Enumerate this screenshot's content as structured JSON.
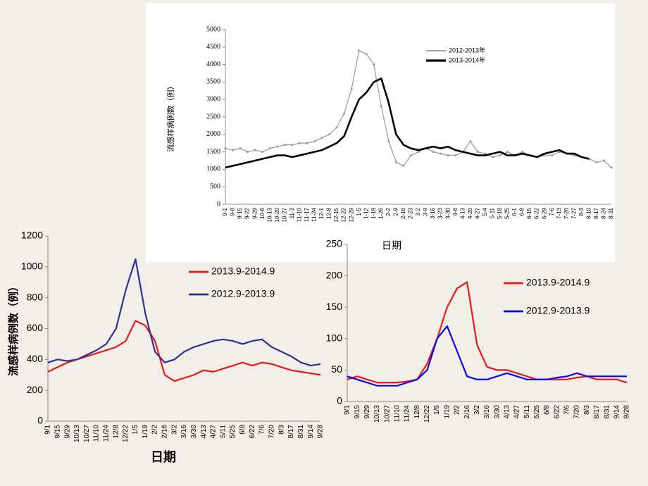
{
  "chart_data": [
    {
      "type": "line",
      "ylabel": "流感样病例数（例）",
      "xlabel": "日期",
      "ylim": [
        0,
        5000
      ],
      "yticks": [
        0,
        500,
        1000,
        1500,
        2000,
        2500,
        3000,
        3500,
        4000,
        4500,
        5000
      ],
      "categories": [
        "9-1",
        "9-8",
        "9-15",
        "9-22",
        "9-29",
        "10-6",
        "10-13",
        "10-20",
        "10-27",
        "11-3",
        "11-10",
        "11-17",
        "11-24",
        "12-1",
        "12-8",
        "12-15",
        "12-22",
        "12-29",
        "1-5",
        "1-12",
        "1-19",
        "1-26",
        "2-2",
        "2-9",
        "2-16",
        "2-23",
        "3-2",
        "3-9",
        "3-16",
        "3-23",
        "3-30",
        "4-6",
        "4-13",
        "4-20",
        "4-27",
        "5-4",
        "5-11",
        "5-18",
        "5-25",
        "6-1",
        "6-8",
        "6-15",
        "6-22",
        "6-29",
        "7-6",
        "7-13",
        "7-20",
        "7-27",
        "8-3",
        "8-10",
        "8-17",
        "8-24",
        "8-31"
      ],
      "series": [
        {
          "name": "2012-2013年",
          "color": "#a0a0a0",
          "values": [
            1600,
            1550,
            1600,
            1500,
            1550,
            1500,
            1600,
            1650,
            1700,
            1700,
            1750,
            1750,
            1800,
            1900,
            2000,
            2200,
            2600,
            3300,
            4400,
            4300,
            4000,
            2800,
            1800,
            1200,
            1100,
            1400,
            1500,
            1600,
            1500,
            1450,
            1400,
            1400,
            1500,
            1800,
            1500,
            1450,
            1350,
            1400,
            1500,
            1400,
            1500,
            1400,
            1350,
            1400,
            1400,
            1500,
            1450,
            1400,
            1350,
            1300,
            1200,
            1250,
            1050
          ]
        },
        {
          "name": "2013-2014年",
          "color": "#000000",
          "values": [
            1050,
            1100,
            1150,
            1200,
            1250,
            1300,
            1350,
            1400,
            1400,
            1350,
            1400,
            1450,
            1500,
            1550,
            1650,
            1750,
            1950,
            2500,
            3000,
            3200,
            3500,
            3600,
            2900,
            2000,
            1700,
            1600,
            1550,
            1600,
            1650,
            1600,
            1650,
            1550,
            1500,
            1450,
            1400,
            1400,
            1450,
            1500,
            1400,
            1400,
            1450,
            1400,
            1350,
            1450,
            1500,
            1550,
            1450,
            1450,
            1350,
            1300,
            null,
            null,
            null
          ]
        }
      ]
    },
    {
      "type": "line",
      "ylabel": "流感样病例数（例）",
      "xlabel": "日期",
      "ylim": [
        0,
        1200
      ],
      "yticks": [
        0,
        200,
        400,
        600,
        800,
        1000,
        1200
      ],
      "categories": [
        "9/1",
        "9/15",
        "9/29",
        "10/13",
        "10/27",
        "11/10",
        "11/24",
        "12/8",
        "12/22",
        "1/5",
        "1/19",
        "2/2",
        "2/16",
        "3/2",
        "3/16",
        "3/30",
        "4/13",
        "4/27",
        "5/11",
        "5/25",
        "6/8",
        "6/22",
        "7/6",
        "7/20",
        "8/3",
        "8/17",
        "8/31",
        "9/14",
        "9/28"
      ],
      "series": [
        {
          "name": "2013.9-2014.9",
          "color": "#e8191c",
          "values": [
            320,
            350,
            380,
            400,
            420,
            440,
            460,
            480,
            520,
            650,
            620,
            520,
            300,
            260,
            280,
            300,
            330,
            320,
            340,
            360,
            380,
            360,
            380,
            370,
            350,
            330,
            320,
            310,
            300
          ]
        },
        {
          "name": "2012.9-2013.9",
          "color": "#2e3192",
          "values": [
            380,
            400,
            390,
            400,
            430,
            460,
            500,
            600,
            850,
            1050,
            700,
            450,
            380,
            400,
            450,
            480,
            500,
            520,
            530,
            520,
            500,
            520,
            530,
            480,
            450,
            420,
            380,
            360,
            370
          ]
        }
      ]
    },
    {
      "type": "line",
      "ylim": [
        0,
        250
      ],
      "yticks": [
        0,
        50,
        100,
        150,
        200,
        250
      ],
      "categories": [
        "9/1",
        "9/15",
        "9/29",
        "10/13",
        "10/27",
        "11/10",
        "11/24",
        "12/8",
        "12/22",
        "1/5",
        "1/19",
        "2/2",
        "2/16",
        "3/2",
        "3/16",
        "3/30",
        "4/13",
        "4/27",
        "5/11",
        "5/25",
        "6/8",
        "6/22",
        "7/6",
        "7/20",
        "8/3",
        "8/17",
        "8/31",
        "9/14",
        "9/28"
      ],
      "series": [
        {
          "name": "2013.9-2014.9",
          "color": "#e8191c",
          "values": [
            35,
            40,
            35,
            30,
            30,
            30,
            32,
            35,
            60,
            100,
            150,
            180,
            190,
            90,
            55,
            50,
            50,
            45,
            40,
            35,
            35,
            35,
            35,
            38,
            40,
            35,
            35,
            35,
            30
          ]
        },
        {
          "name": "2012.9-2013.9",
          "color": "#0a0ae6",
          "values": [
            40,
            35,
            30,
            25,
            25,
            25,
            30,
            35,
            50,
            100,
            120,
            80,
            40,
            35,
            35,
            40,
            45,
            40,
            35,
            35,
            35,
            38,
            40,
            45,
            40,
            40,
            40,
            40,
            40
          ]
        }
      ]
    }
  ]
}
